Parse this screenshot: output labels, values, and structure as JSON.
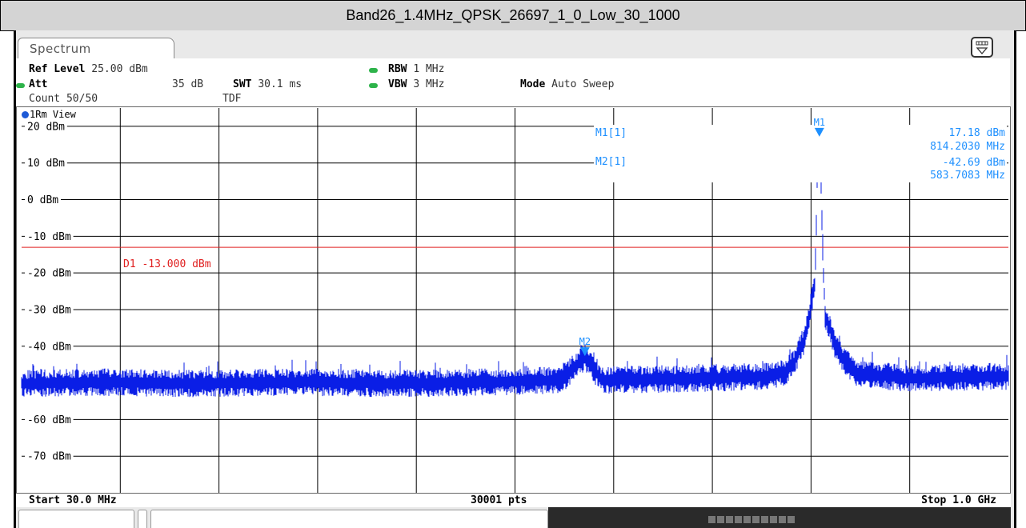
{
  "window": {
    "title": "Band26_1.4MHz_QPSK_26697_1_0_Low_30_1000"
  },
  "tab": {
    "label": "Spectrum"
  },
  "settings": {
    "ref_level_label": "Ref Level",
    "ref_level_value": "25.00 dBm",
    "att_label": "Att",
    "att_value": "35 dB",
    "swt_label": "SWT",
    "swt_value": "30.1 ms",
    "rbw_label": "RBW",
    "rbw_value": "1 MHz",
    "vbw_label": "VBW",
    "vbw_value": "3 MHz",
    "mode_label": "Mode",
    "mode_value": "Auto Sweep",
    "count": "Count 50/50",
    "tdf": "TDF"
  },
  "view": {
    "label": "1Rm View"
  },
  "colors": {
    "trace": "#0a1ee6",
    "marker": "#1e90ff",
    "limit": "#e02020",
    "grid": "#000000",
    "indicator": "#2db34a"
  },
  "markers": {
    "m1_label": "M1[1]",
    "m1_level": "17.18 dBm",
    "m1_freq": "814.2030 MHz",
    "m2_label": "M2[1]",
    "m2_level": "-42.69 dBm",
    "m2_freq": "583.7083 MHz",
    "m1_tag": "M1",
    "m2_tag": "M2"
  },
  "limit_line": {
    "label": "D1  -13.000 dBm",
    "value": -13
  },
  "footer": {
    "start": "Start 30.0 MHz",
    "points": "30001 pts",
    "stop": "Stop 1.0 GHz"
  },
  "chart_data": {
    "type": "line",
    "x_unit": "MHz",
    "xlim": [
      30,
      1000
    ],
    "ylim": [
      -80,
      25
    ],
    "y_ticks": [
      20,
      10,
      0,
      -10,
      -20,
      -30,
      -40,
      -60,
      -70
    ],
    "y_tick_labels": [
      "20 dBm",
      "10 dBm",
      "0 dBm",
      "-10 dBm",
      "-20 dBm",
      "-30 dBm",
      "-40 dBm",
      "-60 dBm",
      "-70 dBm"
    ],
    "grid": true,
    "noise_floor": -50,
    "series": [
      {
        "x": [
          30,
          100,
          200,
          300,
          400,
          500,
          560,
          583.7,
          600,
          700,
          760,
          780,
          790,
          795,
          800,
          805,
          810,
          812,
          814.2,
          816,
          818,
          820,
          825,
          830,
          835,
          840,
          850,
          900,
          1000
        ],
        "y": [
          -50,
          -49.5,
          -50,
          -49.5,
          -50,
          -49.5,
          -49,
          -42.69,
          -49,
          -48.5,
          -48,
          -47,
          -44,
          -40,
          -38,
          -30,
          -22,
          5,
          17.18,
          3,
          -18,
          -32,
          -35,
          -40,
          -42,
          -44,
          -47,
          -48.5,
          -48
        ]
      }
    ],
    "markers": [
      {
        "name": "M1",
        "x": 814.203,
        "y": 17.18
      },
      {
        "name": "M2",
        "x": 583.7083,
        "y": -42.69
      }
    ]
  }
}
